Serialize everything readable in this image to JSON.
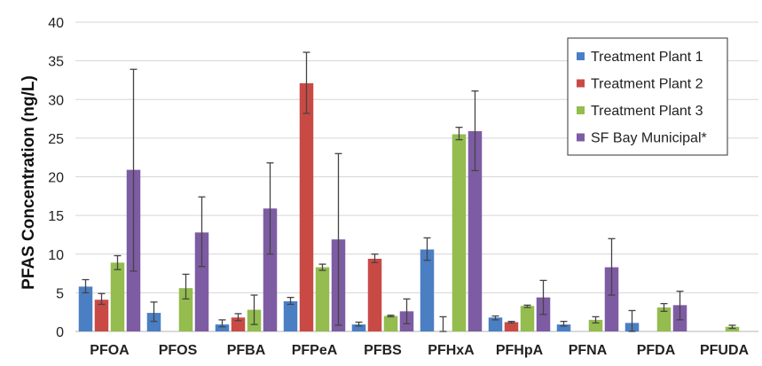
{
  "chart_data": {
    "type": "bar",
    "title": "",
    "xlabel": "",
    "ylabel": "PFAS Concentration (ng/L)",
    "ylim": [
      0,
      40
    ],
    "yticks": [
      0,
      5,
      10,
      15,
      20,
      25,
      30,
      35,
      40
    ],
    "grid": true,
    "legend_position": "top-right",
    "error_bars": true,
    "categories": [
      "PFOA",
      "PFOS",
      "PFBA",
      "PFPeA",
      "PFBS",
      "PFHxA",
      "PFHpA",
      "PFNA",
      "PFDA",
      "PFUDA"
    ],
    "series": [
      {
        "name": "Treatment Plant 1",
        "color": "#4a7fc4",
        "values": [
          5.8,
          2.4,
          0.9,
          3.9,
          0.9,
          10.6,
          1.8,
          0.9,
          1.1,
          null
        ],
        "err_low": [
          5.0,
          1.3,
          0.6,
          3.5,
          0.7,
          9.2,
          1.5,
          0.7,
          0.0,
          null
        ],
        "err_high": [
          6.7,
          3.8,
          1.5,
          4.4,
          1.2,
          12.1,
          2.0,
          1.3,
          2.7,
          null
        ]
      },
      {
        "name": "Treatment Plant 2",
        "color": "#c94a45",
        "values": [
          4.1,
          null,
          1.8,
          32.1,
          9.4,
          0.0,
          1.2,
          null,
          null,
          null
        ],
        "err_low": [
          3.5,
          null,
          1.4,
          28.2,
          8.9,
          0.0,
          1.1,
          null,
          null,
          null
        ],
        "err_high": [
          4.9,
          null,
          2.3,
          36.1,
          10.0,
          1.9,
          1.3,
          null,
          null,
          null
        ]
      },
      {
        "name": "Treatment Plant 3",
        "color": "#94bc4e",
        "values": [
          8.9,
          5.6,
          2.8,
          8.3,
          2.0,
          25.5,
          3.3,
          1.5,
          3.1,
          0.6
        ],
        "err_low": [
          8.0,
          4.2,
          0.9,
          7.9,
          1.9,
          24.8,
          3.1,
          1.1,
          2.6,
          0.4
        ],
        "err_high": [
          9.8,
          7.4,
          4.7,
          8.7,
          2.1,
          26.4,
          3.4,
          1.9,
          3.6,
          0.8
        ]
      },
      {
        "name": "SF Bay Municipal*",
        "color": "#7d5ca3",
        "values": [
          20.9,
          12.8,
          15.9,
          11.9,
          2.6,
          25.9,
          4.4,
          8.3,
          3.4,
          null
        ],
        "err_low": [
          7.8,
          8.4,
          10.0,
          0.8,
          1.0,
          20.8,
          2.2,
          4.7,
          1.5,
          null
        ],
        "err_high": [
          33.9,
          17.4,
          21.8,
          23.0,
          4.2,
          31.1,
          6.6,
          12.0,
          5.2,
          null
        ]
      }
    ]
  }
}
